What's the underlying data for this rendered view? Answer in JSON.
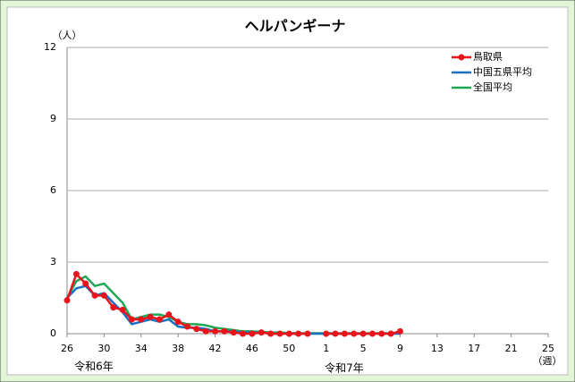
{
  "chart_data": {
    "type": "line",
    "title": "ヘルパンギーナ",
    "y_unit": "（人）",
    "x_unit": "（週）",
    "year_labels": [
      "令和6年",
      "令和7年"
    ],
    "categories": [
      "26",
      null,
      null,
      null,
      "30",
      null,
      null,
      null,
      "34",
      null,
      null,
      null,
      "38",
      null,
      null,
      null,
      "42",
      null,
      null,
      null,
      "46",
      null,
      null,
      null,
      "50",
      null,
      null,
      null,
      "1",
      null,
      null,
      null,
      "5",
      null,
      null,
      null,
      "9",
      null,
      null,
      null,
      "13",
      null,
      null,
      null,
      "17",
      null,
      null,
      null,
      "21",
      null,
      null,
      null,
      "25"
    ],
    "series": [
      {
        "name": "鳥取県",
        "color": "#e8141c",
        "markers": true,
        "values": [
          1.4,
          2.5,
          2.1,
          1.6,
          1.6,
          1.1,
          1.0,
          0.6,
          0.6,
          0.7,
          0.6,
          0.8,
          0.5,
          0.3,
          0.2,
          0.1,
          0.1,
          0.1,
          0.05,
          0,
          0,
          0.05,
          0,
          0,
          0,
          0,
          0,
          null,
          0,
          0,
          0,
          0,
          0,
          0,
          0,
          0,
          0.1,
          null,
          null,
          null,
          null,
          null,
          null,
          null,
          null,
          null,
          null,
          null,
          null,
          null,
          null,
          null,
          null
        ]
      },
      {
        "name": "中国五県平均",
        "color": "#1a6fc0",
        "markers": false,
        "values": [
          1.5,
          1.9,
          2.0,
          1.6,
          1.7,
          1.3,
          0.9,
          0.4,
          0.5,
          0.6,
          0.5,
          0.6,
          0.3,
          0.25,
          0.25,
          0.2,
          0.1,
          0.1,
          0.1,
          0.05,
          0.05,
          0.05,
          0,
          0,
          0,
          0,
          0,
          0,
          0,
          0,
          0,
          0,
          0,
          0,
          0,
          0,
          0,
          null,
          null,
          null,
          null,
          null,
          null,
          null,
          null,
          null,
          null,
          null,
          null,
          null,
          null,
          null,
          null
        ]
      },
      {
        "name": "全国平均",
        "color": "#1fa855",
        "markers": false,
        "values": [
          1.5,
          2.2,
          2.4,
          2.0,
          2.1,
          1.7,
          1.3,
          0.6,
          0.7,
          0.8,
          0.8,
          0.7,
          0.5,
          0.4,
          0.4,
          0.35,
          0.25,
          0.2,
          0.15,
          0.1,
          0.1,
          0.08,
          0.05,
          0.05,
          0.03,
          0.02,
          0.02,
          0.02,
          0.02,
          0.02,
          0.02,
          0.02,
          0.02,
          0.02,
          0.02,
          0.02,
          0.05,
          null,
          null,
          null,
          null,
          null,
          null,
          null,
          null,
          null,
          null,
          null,
          null,
          null,
          null,
          null,
          null
        ]
      }
    ],
    "ylim": [
      0,
      12
    ],
    "yticks": [
      0,
      3,
      6,
      9,
      12
    ],
    "grid": true,
    "legend": "top-right"
  }
}
